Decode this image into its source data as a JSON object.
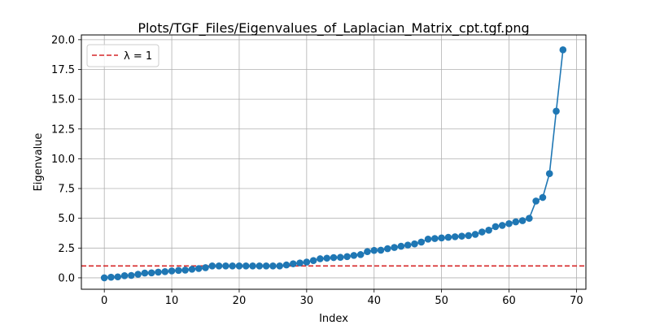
{
  "chart_data": {
    "type": "line",
    "title": "Plots/TGF_Files/Eigenvalues_of_Laplacian_Matrix_cpt.tgf.png",
    "xlabel": "Index",
    "ylabel": "Eigenvalue",
    "xlim": [
      -3.4,
      71.4
    ],
    "ylim": [
      -0.96,
      20.4
    ],
    "xticks": [
      0,
      10,
      20,
      30,
      40,
      50,
      60,
      70
    ],
    "xtick_labels": [
      "0",
      "10",
      "20",
      "30",
      "40",
      "50",
      "60",
      "70"
    ],
    "yticks": [
      0,
      2.5,
      5,
      7.5,
      10,
      12.5,
      15,
      17.5,
      20
    ],
    "ytick_labels": [
      "0.0",
      "2.5",
      "5.0",
      "7.5",
      "10.0",
      "12.5",
      "15.0",
      "17.5",
      "20.0"
    ],
    "grid": true,
    "legend_position": "top-left",
    "series": [
      {
        "color": "#1f77b4",
        "marker": "circle",
        "x": [
          0,
          1,
          2,
          3,
          4,
          5,
          6,
          7,
          8,
          9,
          10,
          11,
          12,
          13,
          14,
          15,
          16,
          17,
          18,
          19,
          20,
          21,
          22,
          23,
          24,
          25,
          26,
          27,
          28,
          29,
          30,
          31,
          32,
          33,
          34,
          35,
          36,
          37,
          38,
          39,
          40,
          41,
          42,
          43,
          44,
          45,
          46,
          47,
          48,
          49,
          50,
          51,
          52,
          53,
          54,
          55,
          56,
          57,
          58,
          59,
          60,
          61,
          62,
          63,
          64,
          65,
          66,
          67,
          68
        ],
        "values": [
          0.0,
          0.05,
          0.08,
          0.18,
          0.2,
          0.3,
          0.4,
          0.42,
          0.48,
          0.52,
          0.58,
          0.62,
          0.65,
          0.72,
          0.78,
          0.85,
          1.0,
          1.0,
          1.0,
          1.0,
          1.0,
          1.0,
          1.0,
          1.0,
          1.0,
          1.0,
          1.0,
          1.08,
          1.18,
          1.25,
          1.32,
          1.45,
          1.6,
          1.65,
          1.7,
          1.72,
          1.78,
          1.88,
          1.95,
          2.2,
          2.3,
          2.32,
          2.45,
          2.55,
          2.65,
          2.75,
          2.85,
          3.0,
          3.25,
          3.3,
          3.35,
          3.4,
          3.45,
          3.5,
          3.55,
          3.65,
          3.85,
          4.0,
          4.3,
          4.4,
          4.55,
          4.7,
          4.8,
          5.0,
          6.45,
          6.75,
          8.75,
          14.0,
          19.15
        ]
      }
    ],
    "reference_lines": [
      {
        "orientation": "horizontal",
        "y": 1,
        "style": "dashed",
        "color": "#d62728",
        "label": "λ = 1"
      }
    ]
  }
}
